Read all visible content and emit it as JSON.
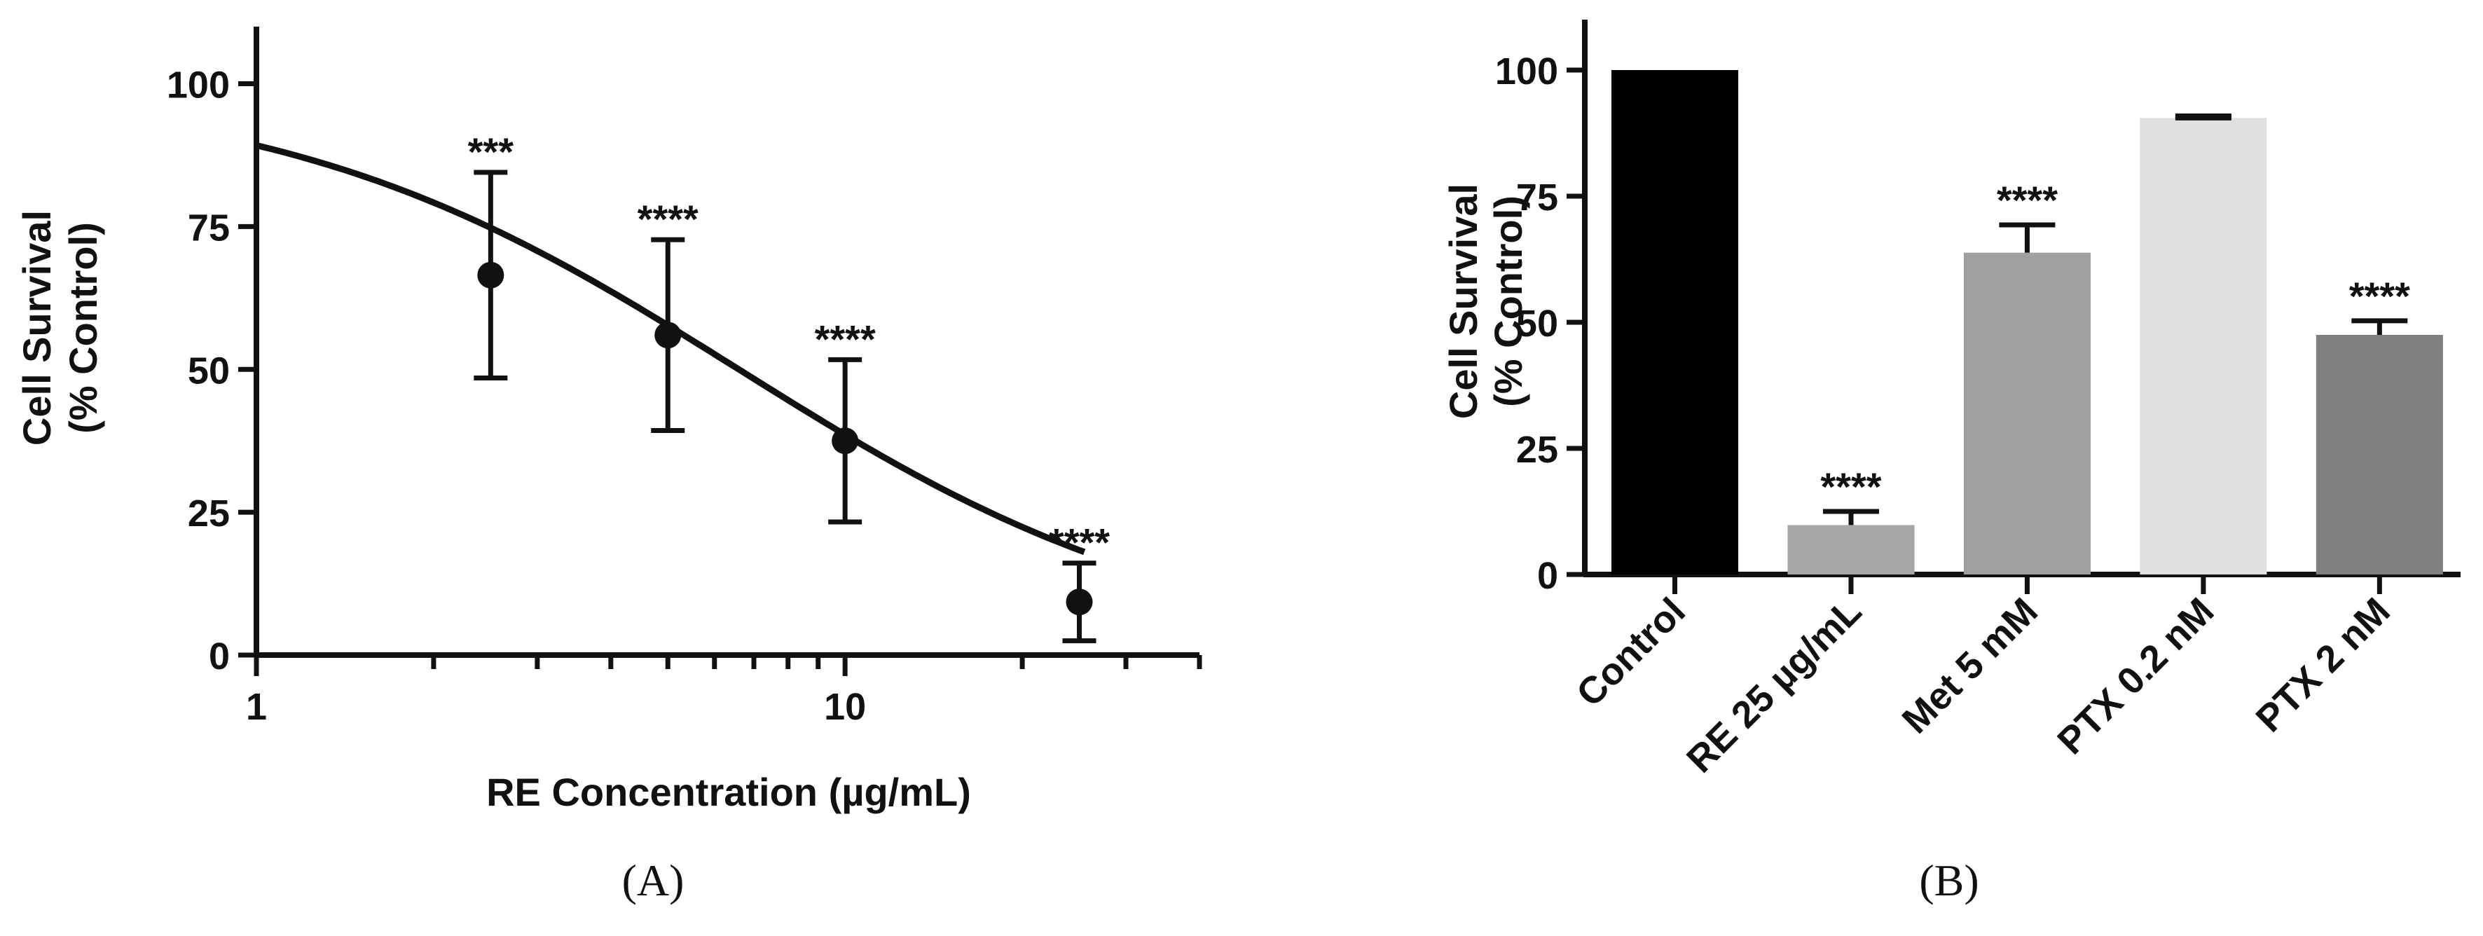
{
  "chart_data": [
    {
      "type": "scatter",
      "panel_label": "(A)",
      "xlabel": "RE Concentration (µg/mL)",
      "ylabel": [
        "Cell Survival",
        "(% Control)"
      ],
      "x_scale": "log",
      "xlim": [
        1,
        40
      ],
      "ylim": [
        0,
        110
      ],
      "x_ticks": [
        {
          "value": 1,
          "label": "1"
        },
        {
          "value": 10,
          "label": "10"
        }
      ],
      "y_ticks": [
        {
          "value": 0,
          "label": "0"
        },
        {
          "value": 25,
          "label": "25"
        },
        {
          "value": 50,
          "label": "50"
        },
        {
          "value": 75,
          "label": "75"
        },
        {
          "value": 100,
          "label": "100"
        }
      ],
      "points": [
        {
          "x": 2.5,
          "y": 66.5,
          "err_low": 48.5,
          "err_high": 84.5,
          "sig": "***"
        },
        {
          "x": 5,
          "y": 56,
          "err_low": 39.3,
          "err_high": 72.7,
          "sig": "****"
        },
        {
          "x": 10,
          "y": 37.5,
          "err_low": 23.3,
          "err_high": 51.7,
          "sig": "****"
        },
        {
          "x": 25,
          "y": 9.3,
          "err_low": 2.5,
          "err_high": 16.1,
          "sig": "****"
        }
      ],
      "fit_curve": {
        "top": 100,
        "ic50": 6.6,
        "hill": 1.12
      },
      "grid": false,
      "color": "#111111"
    },
    {
      "type": "bar",
      "panel_label": "(B)",
      "ylabel": [
        "Cell Survival",
        "(% Control)"
      ],
      "ylim": [
        0,
        110
      ],
      "y_ticks": [
        {
          "value": 0,
          "label": "0"
        },
        {
          "value": 25,
          "label": "25"
        },
        {
          "value": 50,
          "label": "50"
        },
        {
          "value": 75,
          "label": "75"
        },
        {
          "value": 100,
          "label": "100"
        }
      ],
      "categories": [
        "Control",
        "RE 25 µg/mL",
        "Met 5 mM",
        "PTX 0.2 nM",
        "PTX 2 nM"
      ],
      "values": [
        100,
        9.8,
        63.8,
        90.5,
        47.5
      ],
      "errors": [
        0,
        2.7,
        5.5,
        0.4,
        2.8
      ],
      "sig": [
        "",
        "****",
        "****",
        "",
        "****"
      ],
      "colors": [
        "#000000",
        "#a6a6a8",
        "#a0a0a0",
        "#e0e0e0",
        "#808080"
      ],
      "grid": false
    }
  ]
}
